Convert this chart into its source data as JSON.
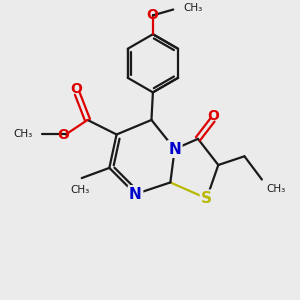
{
  "bg_color": "#ebebeb",
  "bond_color": "#1a1a1a",
  "sulfur_color": "#b8b800",
  "nitrogen_color": "#0000cc",
  "oxygen_color": "#dd0000",
  "line_width": 1.6,
  "figsize": [
    3.0,
    3.0
  ],
  "dpi": 100,
  "xlim": [
    0,
    10
  ],
  "ylim": [
    0,
    10
  ]
}
